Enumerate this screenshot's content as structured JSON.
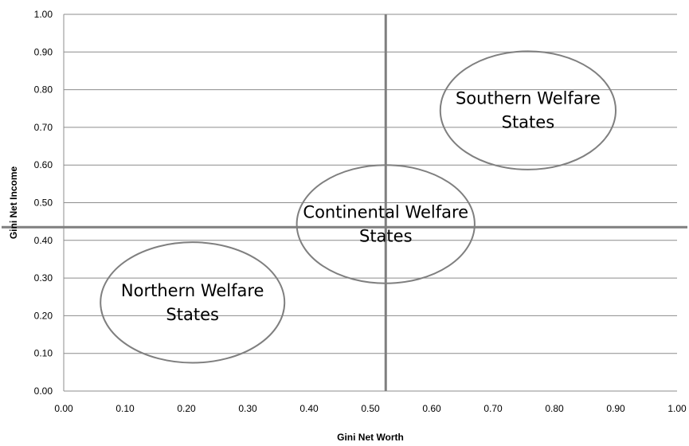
{
  "chart_data": {
    "type": "scatter",
    "title": "",
    "xlabel": "Gini Net Worth",
    "ylabel": "Gini Net Income",
    "xlim": [
      0,
      1
    ],
    "ylim": [
      0,
      1
    ],
    "xticks": [
      "0.00",
      "0.10",
      "0.20",
      "0.30",
      "0.40",
      "0.50",
      "0.60",
      "0.70",
      "0.80",
      "0.90",
      "1.00"
    ],
    "yticks": [
      "0.00",
      "0.10",
      "0.20",
      "0.30",
      "0.40",
      "0.50",
      "0.60",
      "0.70",
      "0.80",
      "0.90",
      "1.00"
    ],
    "grid": "horizontal",
    "reference_lines": {
      "x": 0.525,
      "y": 0.435
    },
    "regions": [
      {
        "label_lines": [
          "Northern Welfare",
          "States"
        ],
        "cx": 0.21,
        "cy": 0.235,
        "rx": 0.15,
        "ry": 0.16
      },
      {
        "label_lines": [
          "Continental Welfare",
          "States"
        ],
        "cx": 0.525,
        "cy": 0.443,
        "rx": 0.145,
        "ry": 0.157
      },
      {
        "label_lines": [
          "Southern Welfare",
          "States"
        ],
        "cx": 0.757,
        "cy": 0.745,
        "rx": 0.143,
        "ry": 0.157
      }
    ]
  }
}
